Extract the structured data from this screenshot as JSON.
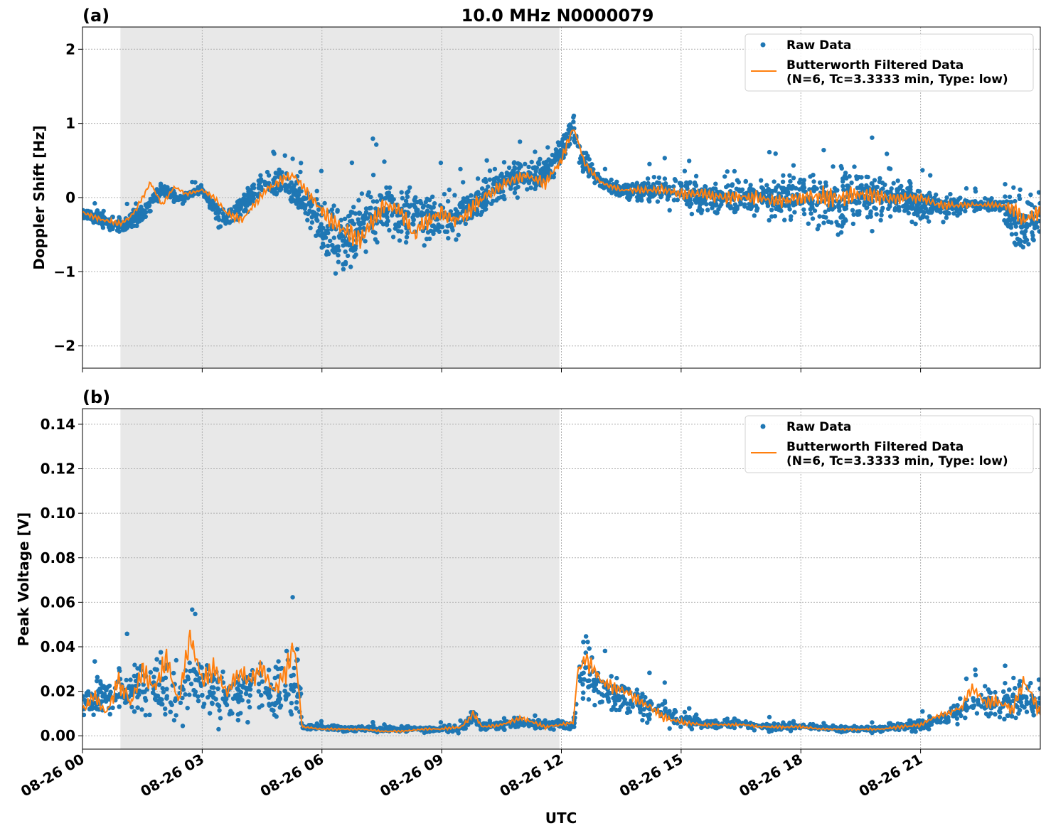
{
  "figure": {
    "title": "10.0 MHz N0000079",
    "xlabel": "UTC",
    "x_ticks": [
      "08-26 00",
      "08-26 03",
      "08-26 06",
      "08-26 09",
      "08-26 12",
      "08-26 15",
      "08-26 18",
      "08-26 21"
    ],
    "colors": {
      "raw": "#1f77b4",
      "filtered": "#ff7f0e",
      "shade": "#e8e8e8",
      "grid": "#b0b0b0"
    }
  },
  "chart_data": [
    {
      "type": "scatter",
      "panel_label": "(a)",
      "ylabel": "Doppler Shift [Hz]",
      "x_unit": "hours UTC on 08-26",
      "xlim": [
        0,
        24
      ],
      "ylim": [
        -2.3,
        2.3
      ],
      "y_ticks": [
        "2",
        "1",
        "0",
        "−1",
        "−2"
      ],
      "y_tick_values": [
        2,
        1,
        0,
        -1,
        -2
      ],
      "grid": true,
      "legend_position": "top-right",
      "shaded_x_range": [
        0.95,
        11.95
      ],
      "legend": [
        "Raw Data",
        "Butterworth Filtered Data",
        "(N=6, Tc=3.3333 min, Type: low)"
      ],
      "series": [
        {
          "name": "Raw Data",
          "kind": "points",
          "x": [
            0,
            0.5,
            1,
            1.5,
            2,
            2.5,
            3,
            3.5,
            4,
            4.5,
            5,
            5.5,
            6,
            6.5,
            7,
            7.5,
            8,
            8.5,
            9,
            9.5,
            10,
            10.5,
            11,
            11.5,
            12,
            12.3,
            12.5,
            13,
            13.5,
            14,
            14.5,
            15,
            15.5,
            16,
            16.5,
            17,
            17.5,
            18,
            18.5,
            19,
            19.5,
            20,
            20.5,
            21,
            21.5,
            22,
            22.5,
            23,
            23.5,
            24
          ],
          "y": [
            -0.2,
            -0.3,
            -0.4,
            -0.2,
            0.1,
            0,
            0.1,
            -0.3,
            -0.1,
            0.2,
            0.2,
            0,
            -0.4,
            -0.6,
            -0.4,
            -0.1,
            -0.3,
            -0.2,
            -0.3,
            -0.2,
            0,
            0.2,
            0.3,
            0.3,
            0.6,
            0.95,
            0.5,
            0.2,
            0.1,
            0.1,
            0.1,
            0.1,
            0,
            0,
            0,
            0,
            0,
            0,
            0,
            0,
            0,
            0,
            0,
            -0.1,
            -0.1,
            -0.1,
            -0.1,
            -0.1,
            -0.4,
            -0.3
          ],
          "spread": [
            0.12,
            0.15,
            0.2,
            0.2,
            0.15,
            0.12,
            0.1,
            0.25,
            0.25,
            0.25,
            0.3,
            0.3,
            0.6,
            0.7,
            0.75,
            0.6,
            0.6,
            0.55,
            0.5,
            0.45,
            0.45,
            0.4,
            0.4,
            0.35,
            0.3,
            0.3,
            0.2,
            0.15,
            0.15,
            0.25,
            0.3,
            0.35,
            0.35,
            0.4,
            0.4,
            0.4,
            0.45,
            0.55,
            0.7,
            0.7,
            0.6,
            0.5,
            0.4,
            0.35,
            0.3,
            0.2,
            0.15,
            0.15,
            0.8,
            0.5
          ]
        },
        {
          "name": "Butterworth Filtered Data",
          "kind": "line",
          "x": [
            0,
            0.5,
            1,
            1.3,
            1.7,
            2,
            2.3,
            2.6,
            3,
            3.3,
            3.6,
            4,
            4.3,
            4.6,
            5,
            5.3,
            5.6,
            6,
            6.3,
            6.6,
            7,
            7.3,
            7.6,
            8,
            8.3,
            8.6,
            9,
            9.3,
            9.6,
            10,
            10.3,
            10.6,
            11,
            11.3,
            11.6,
            12,
            12.3,
            12.6,
            13,
            13.5,
            14,
            14.5,
            15,
            15.5,
            16,
            16.5,
            17,
            17.5,
            18,
            18.5,
            19,
            19.5,
            20,
            20.5,
            21,
            21.5,
            22,
            22.5,
            23,
            23.3,
            23.6,
            24
          ],
          "y": [
            -0.2,
            -0.3,
            -0.35,
            -0.2,
            0.2,
            -0.1,
            0.15,
            0.05,
            0.1,
            0,
            -0.2,
            -0.3,
            -0.1,
            0.1,
            0.25,
            0.3,
            0.1,
            -0.2,
            -0.35,
            -0.45,
            -0.55,
            -0.3,
            -0.1,
            -0.2,
            -0.5,
            -0.3,
            -0.2,
            -0.3,
            -0.25,
            0,
            0.1,
            0.2,
            0.3,
            0.25,
            0.2,
            0.5,
            0.95,
            0.45,
            0.2,
            0.1,
            0.1,
            0.1,
            0.05,
            0.05,
            0,
            0,
            0,
            -0.05,
            0,
            0,
            0,
            0.05,
            0,
            0,
            0,
            -0.1,
            -0.1,
            -0.1,
            -0.1,
            -0.15,
            -0.3,
            -0.2
          ]
        }
      ]
    },
    {
      "type": "scatter",
      "panel_label": "(b)",
      "ylabel": "Peak Voltage [V]",
      "x_unit": "hours UTC on 08-26",
      "xlim": [
        0,
        24
      ],
      "ylim": [
        -0.006,
        0.147
      ],
      "y_ticks": [
        "0.14",
        "0.12",
        "0.10",
        "0.08",
        "0.06",
        "0.04",
        "0.02",
        "0.00"
      ],
      "y_tick_values": [
        0.14,
        0.12,
        0.1,
        0.08,
        0.06,
        0.04,
        0.02,
        0
      ],
      "grid": true,
      "legend_position": "top-right",
      "shaded_x_range": [
        0.95,
        11.95
      ],
      "legend": [
        "Raw Data",
        "Butterworth Filtered Data",
        "(N=6, Tc=3.3333 min, Type: low)"
      ],
      "series": [
        {
          "name": "Raw Data",
          "kind": "points",
          "x": [
            0,
            0.5,
            1,
            1.5,
            2,
            2.5,
            3,
            3.5,
            4,
            4.5,
            5,
            5.2,
            5.4,
            5.5,
            6,
            6.5,
            7,
            7.5,
            8,
            8.5,
            9,
            9.5,
            9.8,
            10,
            10.5,
            11,
            11.5,
            12,
            12.3,
            12.5,
            13,
            13.5,
            14,
            14.5,
            15,
            15.5,
            16,
            16.5,
            17,
            17.5,
            18,
            18.5,
            19,
            19.5,
            20,
            20.5,
            21,
            21.5,
            22,
            22.5,
            23,
            23.5,
            24
          ],
          "y": [
            0.015,
            0.018,
            0.02,
            0.022,
            0.02,
            0.02,
            0.025,
            0.018,
            0.02,
            0.022,
            0.02,
            0.025,
            0.022,
            0.004,
            0.004,
            0.003,
            0.003,
            0.003,
            0.003,
            0.003,
            0.003,
            0.003,
            0.01,
            0.004,
            0.005,
            0.006,
            0.005,
            0.005,
            0.004,
            0.03,
            0.02,
            0.018,
            0.015,
            0.012,
            0.007,
            0.006,
            0.005,
            0.005,
            0.004,
            0.004,
            0.004,
            0.004,
            0.003,
            0.003,
            0.003,
            0.004,
            0.005,
            0.008,
            0.012,
            0.015,
            0.015,
            0.015,
            0.015
          ],
          "spread": [
            0.01,
            0.014,
            0.018,
            0.022,
            0.025,
            0.022,
            0.025,
            0.02,
            0.02,
            0.022,
            0.022,
            0.03,
            0.02,
            0.002,
            0.002,
            0.002,
            0.002,
            0.002,
            0.002,
            0.002,
            0.002,
            0.003,
            0.008,
            0.003,
            0.004,
            0.005,
            0.004,
            0.003,
            0.003,
            0.02,
            0.014,
            0.012,
            0.012,
            0.01,
            0.005,
            0.004,
            0.003,
            0.003,
            0.003,
            0.003,
            0.003,
            0.002,
            0.002,
            0.002,
            0.002,
            0.003,
            0.004,
            0.006,
            0.01,
            0.012,
            0.014,
            0.015,
            0.014
          ]
        },
        {
          "name": "Butterworth Filtered Data",
          "kind": "line",
          "x": [
            0,
            0.3,
            0.6,
            0.9,
            1.2,
            1.5,
            1.8,
            2.1,
            2.4,
            2.7,
            3,
            3.3,
            3.6,
            3.9,
            4.2,
            4.5,
            4.8,
            5.1,
            5.3,
            5.4,
            5.5,
            6,
            6.5,
            7,
            7.5,
            8,
            8.5,
            9,
            9.5,
            9.8,
            10,
            10.5,
            11,
            11.3,
            11.6,
            12,
            12.3,
            12.4,
            12.6,
            13,
            13.3,
            13.6,
            14,
            14.3,
            14.6,
            15,
            15.5,
            16,
            16.5,
            17,
            17.5,
            18,
            18.5,
            19,
            19.5,
            20,
            20.5,
            21,
            21.3,
            21.6,
            22,
            22.3,
            22.6,
            23,
            23.3,
            23.6,
            24
          ],
          "y": [
            0.012,
            0.018,
            0.01,
            0.025,
            0.015,
            0.03,
            0.02,
            0.035,
            0.015,
            0.045,
            0.025,
            0.03,
            0.02,
            0.028,
            0.025,
            0.03,
            0.02,
            0.03,
            0.04,
            0.025,
            0.004,
            0.003,
            0.003,
            0.003,
            0.002,
            0.002,
            0.003,
            0.003,
            0.004,
            0.01,
            0.004,
            0.005,
            0.008,
            0.006,
            0.004,
            0.005,
            0.006,
            0.028,
            0.035,
            0.025,
            0.022,
            0.02,
            0.015,
            0.012,
            0.008,
            0.006,
            0.005,
            0.005,
            0.005,
            0.004,
            0.004,
            0.004,
            0.003,
            0.003,
            0.003,
            0.003,
            0.004,
            0.005,
            0.008,
            0.01,
            0.012,
            0.022,
            0.015,
            0.015,
            0.012,
            0.025,
            0.01
          ]
        }
      ]
    }
  ]
}
